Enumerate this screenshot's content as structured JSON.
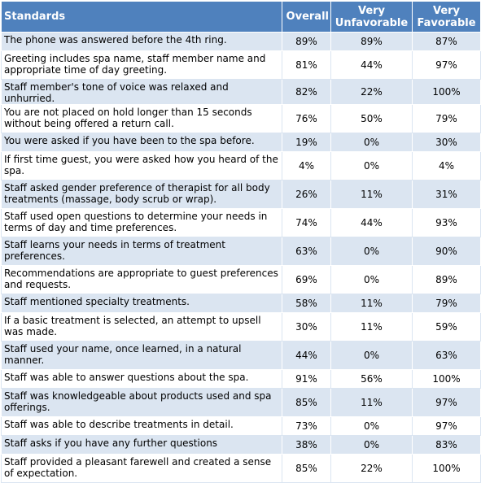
{
  "headers": {
    "standards": "Standards",
    "overall": "Overall",
    "very_unfavorable": "Very Unfavorable",
    "very_favorable": "Very Favorable"
  },
  "rows": [
    {
      "standard": "The phone was answered before the 4th ring.",
      "overall": "89%",
      "very_unfavorable": "89%",
      "very_favorable": "87%"
    },
    {
      "standard": "Greeting includes spa name, staff member name and appropriate time of day greeting.",
      "overall": "81%",
      "very_unfavorable": "44%",
      "very_favorable": "97%"
    },
    {
      "standard": "Staff member's tone of voice was relaxed and unhurried.",
      "overall": "82%",
      "very_unfavorable": "22%",
      "very_favorable": "100%"
    },
    {
      "standard": "You are not placed on hold longer than 15 seconds without being offered a return call.",
      "overall": "76%",
      "very_unfavorable": "50%",
      "very_favorable": "79%"
    },
    {
      "standard": "You were asked if you have been to the spa before.",
      "overall": "19%",
      "very_unfavorable": "0%",
      "very_favorable": "30%"
    },
    {
      "standard": "If first time guest, you were asked how you heard of the spa.",
      "overall": "4%",
      "very_unfavorable": "0%",
      "very_favorable": "4%"
    },
    {
      "standard": "Staff asked gender preference of therapist for all body treatments (massage, body scrub or wrap).",
      "overall": "26%",
      "very_unfavorable": "11%",
      "very_favorable": "31%"
    },
    {
      "standard": "Staff used open questions to determine your needs in terms of day and time preferences.",
      "overall": "74%",
      "very_unfavorable": "44%",
      "very_favorable": "93%"
    },
    {
      "standard": "Staff learns your needs in terms of treatment preferences.",
      "overall": "63%",
      "very_unfavorable": "0%",
      "very_favorable": "90%"
    },
    {
      "standard": "Recommendations are appropriate to guest preferences and requests.",
      "overall": "69%",
      "very_unfavorable": "0%",
      "very_favorable": "89%"
    },
    {
      "standard": "Staff mentioned specialty treatments.",
      "overall": "58%",
      "very_unfavorable": "11%",
      "very_favorable": "79%"
    },
    {
      "standard": "If a basic treatment is selected, an attempt to upsell was made.",
      "overall": "30%",
      "very_unfavorable": "11%",
      "very_favorable": "59%"
    },
    {
      "standard": "Staff used your name, once learned, in a natural manner.",
      "overall": "44%",
      "very_unfavorable": "0%",
      "very_favorable": "63%"
    },
    {
      "standard": "Staff was able to answer questions about the spa.",
      "overall": "91%",
      "very_unfavorable": "56%",
      "very_favorable": "100%"
    },
    {
      "standard": "Staff was knowledgeable about products used and spa offerings.",
      "overall": "85%",
      "very_unfavorable": "11%",
      "very_favorable": "97%"
    },
    {
      "standard": "Staff was able to describe treatments in detail.",
      "overall": "73%",
      "very_unfavorable": "0%",
      "very_favorable": "97%"
    },
    {
      "standard": "Staff asks if you have any further questions",
      "overall": "38%",
      "very_unfavorable": "0%",
      "very_favorable": "83%"
    },
    {
      "standard": "Staff provided a pleasant farewell and created a sense of expectation.",
      "overall": "85%",
      "very_unfavorable": "22%",
      "very_favorable": "100%"
    }
  ]
}
